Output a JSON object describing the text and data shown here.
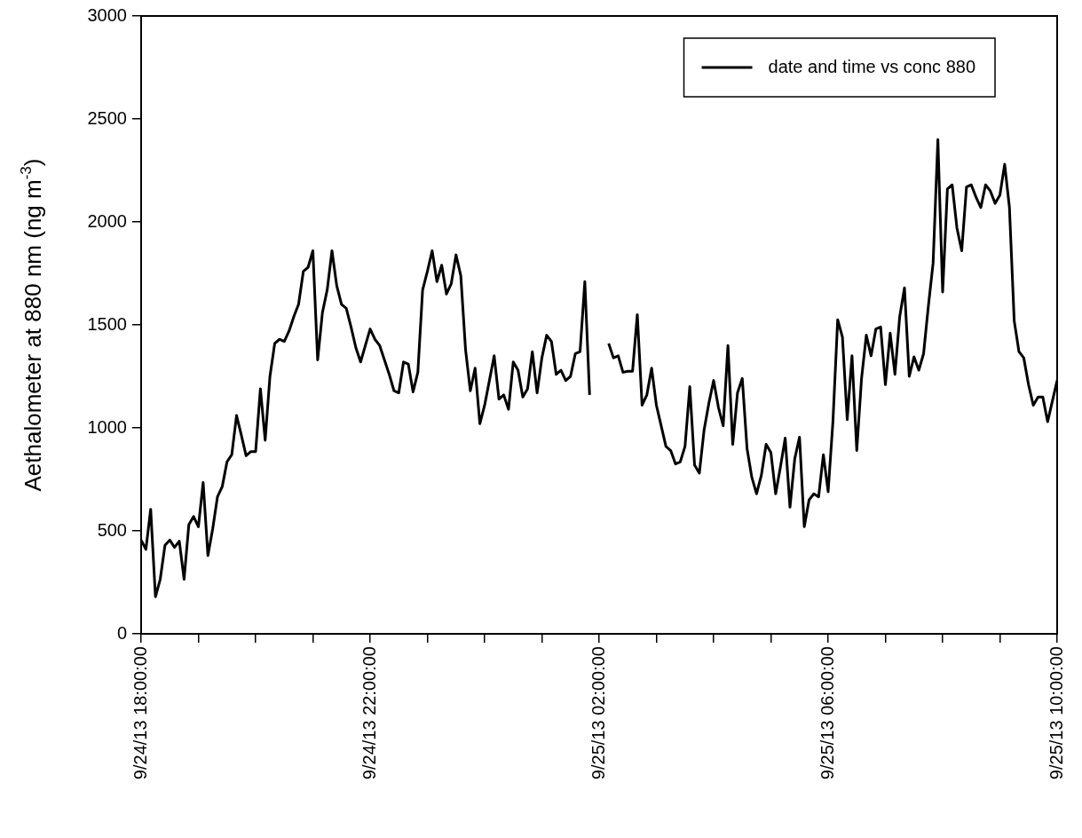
{
  "chart_data": {
    "type": "line",
    "ylabel": "Aethalometer at 880 nm (ng m$^{-3}$)",
    "legend": "top right",
    "grid": false,
    "line_style": "solid",
    "marker": "none",
    "xlim": [
      "--09-24T18:00",
      "--09-25T10:00"
    ],
    "xticks": [
      {
        "value": "--09-24T18:00",
        "label": "9/24/13 18:00:00"
      },
      {
        "value": "--09-24T19:00",
        "label": null
      },
      {
        "value": "--09-24T20:00",
        "label": null
      },
      {
        "value": "--09-24T21:00",
        "label": null
      },
      {
        "value": "--09-24T22:00",
        "label": "9/24/13 22:00:00"
      },
      {
        "value": "--09-24T23:00",
        "label": null
      },
      {
        "value": "--09-25T00:00",
        "label": null
      },
      {
        "value": "--09-25T01:00",
        "label": null
      },
      {
        "value": "--09-25T02:00",
        "label": "9/25/13 02:00:00"
      },
      {
        "value": "--09-25T03:00",
        "label": null
      },
      {
        "value": "--09-25T04:00",
        "label": null
      },
      {
        "value": "--09-25T05:00",
        "label": null
      },
      {
        "value": "--09-25T06:00",
        "label": "9/25/13 06:00:00"
      },
      {
        "value": "--09-25T07:00",
        "label": null
      },
      {
        "value": "--09-25T08:00",
        "label": null
      },
      {
        "value": "--09-25T09:00",
        "label": null
      },
      {
        "value": "--09-25T10:00",
        "label": "9/25/13 10:00:00"
      }
    ],
    "ylim": [
      0,
      3000
    ],
    "yticks": [
      0,
      500,
      1000,
      1500,
      2000,
      2500,
      3000
    ],
    "x": [
      "--09-24T18:00",
      "--09-24T18:05",
      "--09-24T18:10",
      "--09-24T18:15",
      "--09-24T18:20",
      "--09-24T18:25",
      "--09-24T18:30",
      "--09-24T18:35",
      "--09-24T18:40",
      "--09-24T18:45",
      "--09-24T18:50",
      "--09-24T18:55",
      "--09-24T19:00",
      "--09-24T19:05",
      "--09-24T19:10",
      "--09-24T19:15",
      "--09-24T19:20",
      "--09-24T19:25",
      "--09-24T19:30",
      "--09-24T19:35",
      "--09-24T19:40",
      "--09-24T19:45",
      "--09-24T19:50",
      "--09-24T19:55",
      "--09-24T20:00",
      "--09-24T20:05",
      "--09-24T20:10",
      "--09-24T20:15",
      "--09-24T20:20",
      "--09-24T20:25",
      "--09-24T20:30",
      "--09-24T20:35",
      "--09-24T20:40",
      "--09-24T20:45",
      "--09-24T20:50",
      "--09-24T20:55",
      "--09-24T21:00",
      "--09-24T21:05",
      "--09-24T21:10",
      "--09-24T21:15",
      "--09-24T21:20",
      "--09-24T21:25",
      "--09-24T21:30",
      "--09-24T21:35",
      "--09-24T21:40",
      "--09-24T21:45",
      "--09-24T21:50",
      "--09-24T21:55",
      "--09-24T22:00",
      "--09-24T22:05",
      "--09-24T22:10",
      "--09-24T22:15",
      "--09-24T22:20",
      "--09-24T22:25",
      "--09-24T22:30",
      "--09-24T22:35",
      "--09-24T22:40",
      "--09-24T22:45",
      "--09-24T22:50",
      "--09-24T22:55",
      "--09-24T23:00",
      "--09-24T23:05",
      "--09-24T23:10",
      "--09-24T23:15",
      "--09-24T23:20",
      "--09-24T23:25",
      "--09-24T23:30",
      "--09-24T23:35",
      "--09-24T23:40",
      "--09-24T23:45",
      "--09-24T23:50",
      "--09-24T23:55",
      "--09-25T00:00",
      "--09-25T00:05",
      "--09-25T00:10",
      "--09-25T00:15",
      "--09-25T00:20",
      "--09-25T00:25",
      "--09-25T00:30",
      "--09-25T00:35",
      "--09-25T00:40",
      "--09-25T00:45",
      "--09-25T00:50",
      "--09-25T00:55",
      "--09-25T01:00",
      "--09-25T01:05",
      "--09-25T01:10",
      "--09-25T01:15",
      "--09-25T01:20",
      "--09-25T01:25",
      "--09-25T01:30",
      "--09-25T01:35",
      "--09-25T01:40",
      "--09-25T01:45",
      "--09-25T01:50",
      "--09-25T02:00",
      "--09-25T02:10",
      "--09-25T02:15",
      "--09-25T02:20",
      "--09-25T02:25",
      "--09-25T02:30",
      "--09-25T02:35",
      "--09-25T02:40",
      "--09-25T02:45",
      "--09-25T02:50",
      "--09-25T02:55",
      "--09-25T03:00",
      "--09-25T03:05",
      "--09-25T03:10",
      "--09-25T03:15",
      "--09-25T03:20",
      "--09-25T03:25",
      "--09-25T03:30",
      "--09-25T03:35",
      "--09-25T03:40",
      "--09-25T03:45",
      "--09-25T03:50",
      "--09-25T03:55",
      "--09-25T04:00",
      "--09-25T04:05",
      "--09-25T04:10",
      "--09-25T04:15",
      "--09-25T04:20",
      "--09-25T04:25",
      "--09-25T04:30",
      "--09-25T04:35",
      "--09-25T04:40",
      "--09-25T04:45",
      "--09-25T04:50",
      "--09-25T04:55",
      "--09-25T05:00",
      "--09-25T05:05",
      "--09-25T05:10",
      "--09-25T05:15",
      "--09-25T05:20",
      "--09-25T05:25",
      "--09-25T05:30",
      "--09-25T05:35",
      "--09-25T05:40",
      "--09-25T05:45",
      "--09-25T05:50",
      "--09-25T05:55",
      "--09-25T06:00",
      "--09-25T06:05",
      "--09-25T06:10",
      "--09-25T06:15",
      "--09-25T06:20",
      "--09-25T06:25",
      "--09-25T06:30",
      "--09-25T06:35",
      "--09-25T06:40",
      "--09-25T06:45",
      "--09-25T06:50",
      "--09-25T06:55",
      "--09-25T07:00",
      "--09-25T07:05",
      "--09-25T07:10",
      "--09-25T07:15",
      "--09-25T07:20",
      "--09-25T07:25",
      "--09-25T07:30",
      "--09-25T07:35",
      "--09-25T07:40",
      "--09-25T07:45",
      "--09-25T07:50",
      "--09-25T07:55",
      "--09-25T08:00",
      "--09-25T08:05",
      "--09-25T08:10",
      "--09-25T08:15",
      "--09-25T08:20",
      "--09-25T08:25",
      "--09-25T08:30",
      "--09-25T08:35",
      "--09-25T08:40",
      "--09-25T08:45",
      "--09-25T08:50",
      "--09-25T08:55",
      "--09-25T09:00",
      "--09-25T09:05",
      "--09-25T09:10",
      "--09-25T09:15",
      "--09-25T09:20",
      "--09-25T09:25",
      "--09-25T09:30",
      "--09-25T09:35",
      "--09-25T09:40",
      "--09-25T09:45",
      "--09-25T09:50",
      "--09-25T09:55",
      "--09-25T10:00"
    ],
    "series": [
      {
        "name": "date and time vs conc 880",
        "color": "#000000",
        "values": [
          455,
          410,
          605,
          180,
          265,
          430,
          455,
          420,
          450,
          265,
          530,
          570,
          520,
          735,
          380,
          510,
          665,
          715,
          835,
          870,
          1060,
          965,
          865,
          885,
          885,
          1190,
          940,
          1250,
          1410,
          1430,
          1420,
          1470,
          1540,
          1600,
          1760,
          1780,
          1860,
          1330,
          1560,
          1670,
          1860,
          1690,
          1600,
          1580,
          1490,
          1390,
          1320,
          1400,
          1480,
          1430,
          1400,
          1330,
          1260,
          1180,
          1170,
          1320,
          1310,
          1175,
          1270,
          1670,
          1760,
          1860,
          1710,
          1790,
          1650,
          1700,
          1840,
          1740,
          1380,
          1180,
          1290,
          1020,
          1110,
          1230,
          1350,
          1140,
          1160,
          1090,
          1320,
          1280,
          1150,
          1190,
          1370,
          1170,
          1340,
          1450,
          1420,
          1260,
          1280,
          1230,
          1250,
          1360,
          1370,
          1710,
          1160,
          null,
          1410,
          1340,
          1350,
          1270,
          1275,
          1275,
          1550,
          1110,
          1160,
          1290,
          1110,
          1010,
          910,
          890,
          825,
          835,
          910,
          1200,
          820,
          780,
          990,
          1120,
          1230,
          1100,
          1010,
          1400,
          920,
          1170,
          1240,
          900,
          760,
          680,
          770,
          920,
          880,
          680,
          810,
          950,
          615,
          850,
          955,
          520,
          650,
          680,
          665,
          870,
          690,
          1030,
          1525,
          1440,
          1040,
          1350,
          890,
          1240,
          1450,
          1350,
          1480,
          1490,
          1210,
          1460,
          1260,
          1540,
          1680,
          1250,
          1345,
          1280,
          1360,
          1590,
          1800,
          2400,
          1660,
          2160,
          2180,
          1970,
          1860,
          2170,
          2180,
          2120,
          2070,
          2180,
          2150,
          2090,
          2130,
          2280,
          2070,
          1520,
          1370,
          1340,
          1210,
          1110,
          1150,
          1150,
          1030,
          1130,
          1230
        ]
      }
    ]
  }
}
